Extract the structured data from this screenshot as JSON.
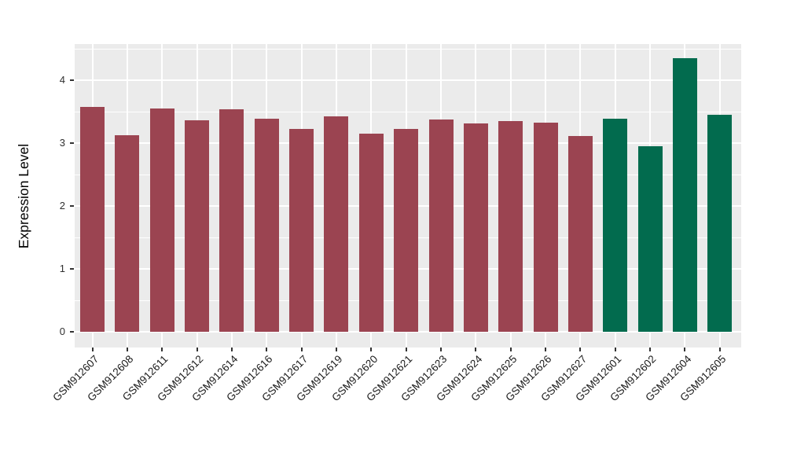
{
  "chart_data": {
    "type": "bar",
    "title": "",
    "xlabel": "",
    "ylabel": "Expression Level",
    "ylim": [
      0,
      4.58
    ],
    "y_ticks": [
      0,
      1,
      2,
      3,
      4
    ],
    "y_minor_ticks": [
      0.5,
      1.5,
      2.5,
      3.5,
      4.5
    ],
    "grid": "on",
    "legend": "none",
    "panel_bg": "#EBEBEB",
    "grid_color": "#FFFFFF",
    "colors": {
      "group1": "#9B4451",
      "group2": "#026B4E"
    },
    "categories": [
      "GSM912607",
      "GSM912608",
      "GSM912611",
      "GSM912612",
      "GSM912614",
      "GSM912616",
      "GSM912617",
      "GSM912619",
      "GSM912620",
      "GSM912621",
      "GSM912623",
      "GSM912624",
      "GSM912625",
      "GSM912626",
      "GSM912627",
      "GSM912601",
      "GSM912602",
      "GSM912604",
      "GSM912605"
    ],
    "values": [
      3.58,
      3.12,
      3.55,
      3.36,
      3.54,
      3.39,
      3.22,
      3.42,
      3.15,
      3.23,
      3.37,
      3.31,
      3.35,
      3.33,
      3.11,
      3.39,
      2.95,
      4.35,
      3.45
    ],
    "bar_groups": [
      "group1",
      "group1",
      "group1",
      "group1",
      "group1",
      "group1",
      "group1",
      "group1",
      "group1",
      "group1",
      "group1",
      "group1",
      "group1",
      "group1",
      "group1",
      "group2",
      "group2",
      "group2",
      "group2"
    ],
    "x_tick_angle": 45
  }
}
